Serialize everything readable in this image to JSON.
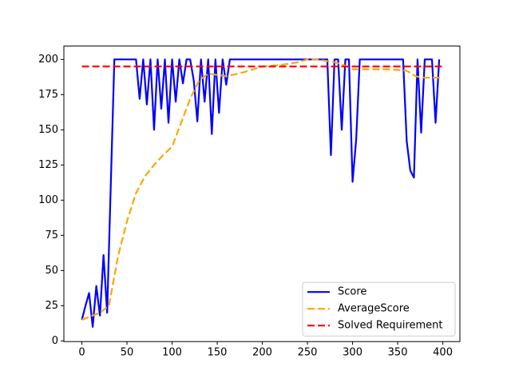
{
  "chart_data": {
    "type": "line",
    "xlim": [
      -19.95,
      418.95
    ],
    "ylim": [
      -0.5,
      209.5
    ],
    "xticks": [
      0,
      50,
      100,
      150,
      200,
      250,
      300,
      350,
      400
    ],
    "yticks": [
      0,
      25,
      50,
      75,
      100,
      125,
      150,
      175,
      200
    ],
    "legend": "lower right",
    "series": [
      {
        "name": "Score",
        "color": "#0000ff",
        "dash": "solid",
        "x": [
          0,
          4,
          8,
          12,
          16,
          20,
          24,
          28,
          32,
          36,
          40,
          44,
          48,
          52,
          56,
          60,
          64,
          68,
          72,
          76,
          80,
          84,
          88,
          92,
          96,
          100,
          104,
          108,
          112,
          116,
          120,
          124,
          128,
          132,
          136,
          140,
          144,
          148,
          152,
          156,
          160,
          164,
          168,
          172,
          176,
          180,
          184,
          188,
          192,
          196,
          200,
          204,
          208,
          212,
          216,
          220,
          224,
          228,
          232,
          236,
          240,
          244,
          248,
          252,
          256,
          260,
          264,
          268,
          272,
          276,
          280,
          284,
          288,
          292,
          296,
          300,
          304,
          308,
          312,
          316,
          320,
          324,
          328,
          332,
          336,
          340,
          344,
          348,
          352,
          356,
          360,
          364,
          368,
          372,
          376,
          380,
          384,
          388,
          392,
          396
        ],
        "values": [
          15,
          25,
          34,
          10,
          39,
          18,
          61,
          20,
          110,
          200,
          200,
          200,
          200,
          200,
          200,
          200,
          172,
          200,
          168,
          200,
          150,
          200,
          165,
          200,
          155,
          200,
          170,
          200,
          183,
          200,
          200,
          185,
          156,
          200,
          170,
          200,
          147,
          200,
          162,
          200,
          182,
          200,
          200,
          200,
          200,
          200,
          200,
          200,
          200,
          200,
          200,
          200,
          200,
          200,
          200,
          200,
          200,
          200,
          200,
          200,
          200,
          200,
          200,
          200,
          200,
          200,
          200,
          200,
          200,
          132,
          200,
          200,
          150,
          200,
          200,
          113,
          143,
          200,
          200,
          200,
          200,
          200,
          200,
          200,
          200,
          200,
          200,
          200,
          200,
          200,
          142,
          121,
          116,
          200,
          148,
          200,
          200,
          200,
          155,
          200
        ]
      },
      {
        "name": "AverageScore",
        "color": "#ffa500",
        "dash": "dashed",
        "x": [
          0,
          20,
          30,
          40,
          50,
          60,
          70,
          80,
          90,
          100,
          110,
          120,
          130,
          140,
          150,
          160,
          180,
          200,
          220,
          240,
          250,
          260,
          270,
          280,
          290,
          300,
          320,
          340,
          360,
          370,
          380,
          399
        ],
        "values": [
          15,
          20,
          25,
          60,
          85,
          105,
          117,
          125,
          132,
          138,
          155,
          172,
          185,
          190,
          189,
          188,
          191,
          195,
          196,
          198,
          200,
          200,
          199,
          198,
          196,
          193,
          193,
          193,
          192,
          188,
          187,
          187
        ]
      },
      {
        "name": "Solved Requirement",
        "color": "#ff0000",
        "dash": "dashed",
        "x": [
          0,
          399
        ],
        "values": [
          195,
          195
        ]
      }
    ]
  }
}
